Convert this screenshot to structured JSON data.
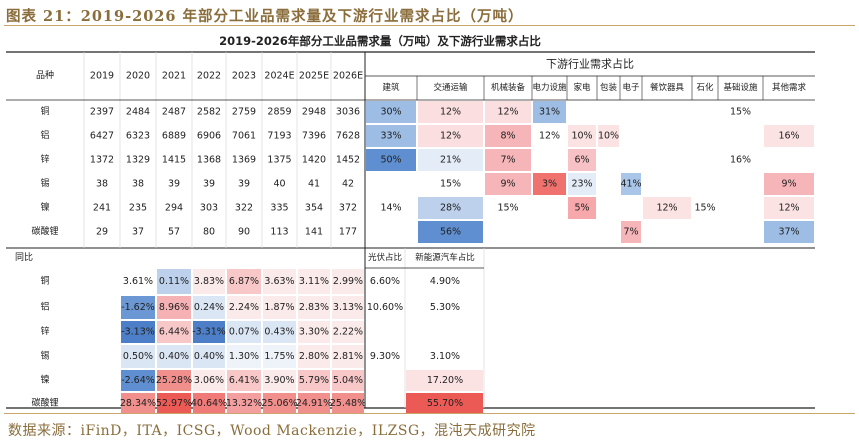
{
  "figure": {
    "title": "图表 21：2019-2026 年部分工业品需求量及下游行业需求占比（万吨）",
    "source": "数据来源：iFinD，ITA，ICSG，Wood Mackenzie，ILZSG，混沌天成研究院"
  },
  "chart_data": {
    "type": "table",
    "title": "2019-2026年部分工业品需求量（万吨）及下游行业需求占比",
    "demand": {
      "corner_label": "品种",
      "columns": [
        "2019",
        "2020",
        "2021",
        "2022",
        "2023",
        "2024E",
        "2025E",
        "2026E"
      ],
      "rows": [
        {
          "name": "铜",
          "values": [
            "2397",
            "2484",
            "2487",
            "2582",
            "2759",
            "2859",
            "2948",
            "3036"
          ]
        },
        {
          "name": "铝",
          "values": [
            "6427",
            "6323",
            "6889",
            "6906",
            "7061",
            "7193",
            "7396",
            "7628"
          ]
        },
        {
          "name": "锌",
          "values": [
            "1372",
            "1329",
            "1415",
            "1368",
            "1369",
            "1375",
            "1420",
            "1452"
          ]
        },
        {
          "name": "锡",
          "values": [
            "38",
            "38",
            "39",
            "39",
            "39",
            "40",
            "41",
            "42"
          ]
        },
        {
          "name": "镍",
          "values": [
            "241",
            "235",
            "294",
            "303",
            "322",
            "335",
            "354",
            "372"
          ]
        },
        {
          "name": "碳酸锂",
          "values": [
            "29",
            "37",
            "57",
            "80",
            "90",
            "113",
            "141",
            "177"
          ]
        }
      ]
    },
    "downstream": {
      "title": "下游行业需求占比",
      "columns": [
        "建筑",
        "交通运输",
        "机械装备",
        "电力设施",
        "家电",
        "包装",
        "电子",
        "餐饮器具",
        "石化",
        "基础设施",
        "其他需求"
      ],
      "rows": [
        [
          "30%",
          "12%",
          "12%",
          "31%",
          "",
          "",
          "",
          "",
          "",
          "15%",
          ""
        ],
        [
          "33%",
          "12%",
          "8%",
          "12%",
          "10%",
          "10%",
          "",
          "",
          "",
          "",
          "16%"
        ],
        [
          "50%",
          "21%",
          "7%",
          "",
          "6%",
          "",
          "",
          "",
          "",
          "16%",
          ""
        ],
        [
          "",
          "15%",
          "9%",
          "3%",
          "23%",
          "",
          "41%",
          "",
          "",
          "",
          "9%"
        ],
        [
          "14%",
          "28%",
          "15%",
          "",
          "5%",
          "",
          "",
          "12%",
          "15%",
          "",
          "12%"
        ],
        [
          "",
          "56%",
          "",
          "",
          "",
          "",
          "7%",
          "",
          "",
          "",
          "37%"
        ]
      ],
      "colors": [
        [
          "#9dbde4",
          "#fbdedf",
          "#fbdedf",
          "#9dbde4",
          "",
          "",
          "",
          "",
          "",
          "",
          ""
        ],
        [
          "#9dbde4",
          "#fbdedf",
          "#f6b5b8",
          "",
          "#fbe3e4",
          "#fbe3e4",
          "",
          "",
          "",
          "",
          "#fbe3e4"
        ],
        [
          "#5f8fd0",
          "#e4ecf7",
          "#f6b5b8",
          "",
          "#f7c2c5",
          "",
          "",
          "",
          "",
          "",
          ""
        ],
        [
          "",
          "",
          "#f6b5b8",
          "#f0726f",
          "#e4ecf7",
          "",
          "#a9c5e8",
          "",
          "",
          "",
          "#f6b5b8"
        ],
        [
          "",
          "#bdd1ec",
          "",
          "",
          "#f6a8ab",
          "",
          "",
          "#fbe3e4",
          "",
          "",
          "#fbe3e4"
        ],
        [
          "",
          "#5f8fd0",
          "",
          "",
          "",
          "",
          "#f6b5b8",
          "",
          "",
          "",
          "#9dbde4"
        ]
      ]
    },
    "yoy": {
      "label": "同比",
      "rows": [
        {
          "name": "铜",
          "values": [
            "3.61%",
            "0.11%",
            "3.83%",
            "6.87%",
            "3.63%",
            "3.11%",
            "2.99%"
          ]
        },
        {
          "name": "铝",
          "values": [
            "-1.62%",
            "8.96%",
            "0.24%",
            "2.24%",
            "1.87%",
            "2.83%",
            "3.13%"
          ]
        },
        {
          "name": "锌",
          "values": [
            "-3.13%",
            "6.44%",
            "-3.31%",
            "0.07%",
            "0.43%",
            "3.30%",
            "2.22%"
          ]
        },
        {
          "name": "锡",
          "values": [
            "0.50%",
            "0.40%",
            "0.40%",
            "1.30%",
            "1.75%",
            "2.80%",
            "2.81%"
          ]
        },
        {
          "name": "镍",
          "values": [
            "-2.64%",
            "25.28%",
            "3.06%",
            "6.41%",
            "3.90%",
            "5.79%",
            "5.04%"
          ]
        },
        {
          "name": "碳酸锂",
          "values": [
            "28.34%",
            "52.97%",
            "40.64%",
            "13.32%",
            "25.06%",
            "24.91%",
            "25.48%"
          ]
        }
      ],
      "colors": [
        [
          "#ffffff",
          "#bdd1ec",
          "#fbeaea",
          "#f8c8c9",
          "#fbeaea",
          "#fbeaea",
          "#fbeaea"
        ],
        [
          "#6b98d4",
          "#f5b1b3",
          "#dbe6f5",
          "#fbeaea",
          "#fbeaea",
          "#fbeaea",
          "#fbeaea"
        ],
        [
          "#4d7fc8",
          "#f8c8c9",
          "#4d7fc8",
          "#dbe6f5",
          "#dbe6f5",
          "#fbeaea",
          "#fbeaea"
        ],
        [
          "#dbe6f5",
          "#dbe6f5",
          "#dbe6f5",
          "#eef3fa",
          "#eef3fa",
          "#fbeaea",
          "#fbeaea"
        ],
        [
          "#5f8fd0",
          "#f18f8d",
          "#fbeaea",
          "#f8c8c9",
          "#fbeaea",
          "#f8c8c9",
          "#f8c8c9"
        ],
        [
          "#f18f8d",
          "#ec5a56",
          "#f07a77",
          "#f39e9f",
          "#f18f8d",
          "#f18f8d",
          "#f18f8d"
        ]
      ]
    },
    "shares": {
      "columns": [
        "光伏占比",
        "新能源汽车占比"
      ],
      "rows": [
        [
          "6.60%",
          "4.90%"
        ],
        [
          "10.60%",
          "5.30%"
        ],
        [
          "",
          ""
        ],
        [
          "9.30%",
          "3.10%"
        ],
        [
          "",
          "17.20%"
        ],
        [
          "",
          "55.70%"
        ]
      ],
      "colors": [
        [
          "",
          ""
        ],
        [
          "",
          ""
        ],
        [
          "",
          ""
        ],
        [
          "",
          ""
        ],
        [
          "",
          "#fbe3e4"
        ],
        [
          "",
          "#ec5a56"
        ]
      ]
    }
  }
}
